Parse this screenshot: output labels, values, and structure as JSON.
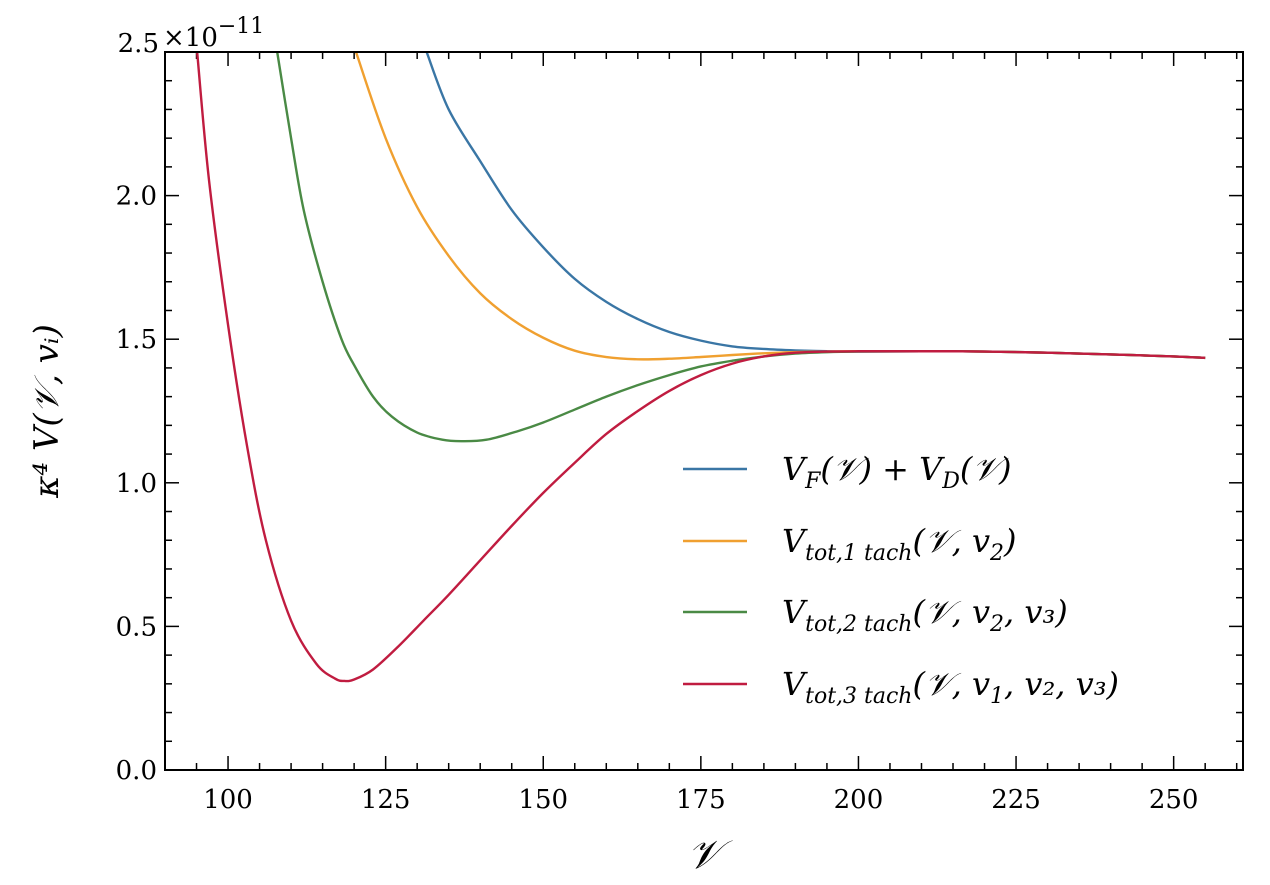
{
  "chart_data": {
    "type": "line",
    "title": "",
    "xlabel": "𝒱",
    "ylabel": "κ⁴ V(𝒱, vᵢ)",
    "xlim": [
      90,
      261
    ],
    "ylim": [
      0.0,
      2.5
    ],
    "y_scale_label": "×10",
    "y_scale_exponent": "−11",
    "x_ticks": [
      "100",
      "125",
      "150",
      "175",
      "200",
      "225",
      "250"
    ],
    "y_ticks": [
      "0.0",
      "0.5",
      "1.0",
      "1.5",
      "2.0",
      "2.5"
    ],
    "legend_position": "lower-right",
    "grid": false,
    "series": [
      {
        "name": "V_F(𝒱) + V_D(𝒱)",
        "legend": {
          "main": "V",
          "sub": "F",
          "rest": "(𝒱) + V",
          "sub2": "D",
          "rest2": "(𝒱)"
        },
        "color": "#3a76a5",
        "x": [
          131.5,
          135,
          140,
          145,
          150,
          155,
          160,
          165,
          170,
          175,
          180,
          185,
          190,
          195,
          200,
          210,
          215,
          220,
          230,
          240,
          250,
          255
        ],
        "y": [
          2.5,
          2.3,
          2.12,
          1.95,
          1.82,
          1.71,
          1.63,
          1.57,
          1.525,
          1.495,
          1.475,
          1.466,
          1.461,
          1.458,
          1.457,
          1.458,
          1.458,
          1.457,
          1.453,
          1.447,
          1.44,
          1.435
        ]
      },
      {
        "name": "V_tot,1 tach(𝒱, v2)",
        "legend": {
          "main": "V",
          "sub": "tot,1 tach",
          "rest": "(𝒱, v",
          "sub2": "2",
          "rest2": ")"
        },
        "color": "#f0a030",
        "x": [
          120.3,
          125,
          130,
          135,
          140,
          145,
          150,
          155,
          160,
          165,
          170,
          175,
          180,
          185,
          190,
          195,
          200,
          210,
          215,
          220,
          230,
          240,
          250,
          255
        ],
        "y": [
          2.5,
          2.2,
          1.96,
          1.79,
          1.66,
          1.57,
          1.505,
          1.46,
          1.438,
          1.43,
          1.432,
          1.438,
          1.445,
          1.451,
          1.455,
          1.457,
          1.458,
          1.458,
          1.458,
          1.457,
          1.453,
          1.447,
          1.44,
          1.435
        ]
      },
      {
        "name": "V_tot,2 tach(𝒱, v2, v3)",
        "legend": {
          "main": "V",
          "sub": "tot,2 tach",
          "rest": "(𝒱, v",
          "sub2": "2",
          "rest2": ", v₃)"
        },
        "color": "#4a8a45",
        "x": [
          107.8,
          110,
          112,
          115,
          118,
          120,
          123,
          126,
          130,
          134,
          137,
          141,
          146,
          150,
          155,
          160,
          165,
          170,
          175,
          180,
          185,
          190,
          195,
          200,
          210,
          215,
          220,
          230,
          240,
          250,
          255
        ],
        "y": [
          2.5,
          2.2,
          1.95,
          1.7,
          1.5,
          1.41,
          1.3,
          1.23,
          1.175,
          1.15,
          1.145,
          1.15,
          1.18,
          1.21,
          1.255,
          1.3,
          1.34,
          1.375,
          1.405,
          1.425,
          1.44,
          1.45,
          1.455,
          1.457,
          1.458,
          1.458,
          1.457,
          1.453,
          1.447,
          1.44,
          1.435
        ]
      },
      {
        "name": "V_tot,3 tach(𝒱, v1, v2, v3)",
        "legend": {
          "main": "V",
          "sub": "tot,3 tach",
          "rest": "(𝒱, v",
          "sub2": "1",
          "rest2": ", v₂, v₃)"
        },
        "color": "#c01c40",
        "x": [
          95.1,
          97,
          100,
          103,
          106,
          110,
          114,
          117,
          118.5,
          120,
          123,
          127,
          131,
          135,
          140,
          145,
          150,
          155,
          160,
          165,
          170,
          175,
          180,
          185,
          190,
          195,
          200,
          210,
          215,
          220,
          230,
          240,
          250,
          255
        ],
        "y": [
          2.5,
          2.05,
          1.55,
          1.13,
          0.8,
          0.52,
          0.37,
          0.318,
          0.31,
          0.315,
          0.35,
          0.43,
          0.52,
          0.61,
          0.73,
          0.85,
          0.965,
          1.07,
          1.17,
          1.25,
          1.32,
          1.375,
          1.415,
          1.44,
          1.453,
          1.457,
          1.458,
          1.458,
          1.458,
          1.457,
          1.453,
          1.447,
          1.44,
          1.435
        ]
      }
    ]
  }
}
